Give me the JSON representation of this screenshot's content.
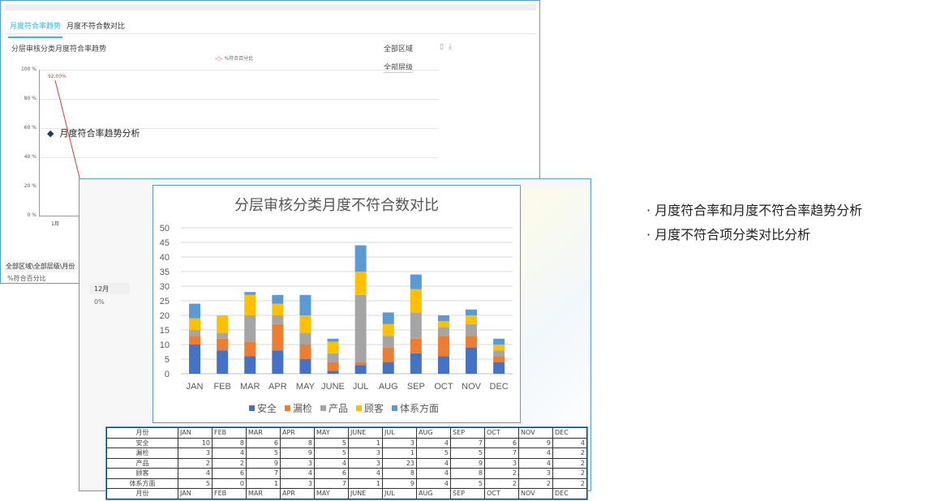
{
  "back_window": {
    "tabs": [
      {
        "label": "月度符合率趋势",
        "active": true
      },
      {
        "label": "月度不符合数对比",
        "active": false
      }
    ],
    "chart_title": "分层审核分类月度符合率趋势",
    "legend": "%符合百分比",
    "y_ticks": [
      "100 %",
      "80 %",
      "60 %",
      "40 %",
      "20 %",
      "0 %"
    ],
    "x_tick": "1月",
    "point_label": "92.00%",
    "filter_region": "全部区域",
    "filter_level": "全部层级",
    "annotation": "月度符合率趋势分析",
    "table_header": "全部区域\\全部层级\\月份",
    "table_row_label": "%符合百分比",
    "month_cell": "12月",
    "value_cell": "0%",
    "line_color": "#e03a2f"
  },
  "chart_data": {
    "type": "bar",
    "stacked": true,
    "title": "分层审核分类月度不符合数对比",
    "categories": [
      "JAN",
      "FEB",
      "MAR",
      "APR",
      "MAY",
      "JUNE",
      "JUL",
      "AUG",
      "SEP",
      "OCT",
      "NOV",
      "DEC"
    ],
    "ylim": [
      0,
      50
    ],
    "yticks": [
      0,
      5,
      10,
      15,
      20,
      25,
      30,
      35,
      40,
      45,
      50
    ],
    "grid": true,
    "legend_position": "bottom",
    "series": [
      {
        "name": "安全",
        "color": "#4472c4",
        "values": [
          10,
          8,
          6,
          8,
          5,
          1,
          3,
          4,
          7,
          6,
          9,
          4
        ]
      },
      {
        "name": "漏检",
        "color": "#ed7d31",
        "values": [
          3,
          4,
          5,
          9,
          5,
          3,
          1,
          5,
          5,
          7,
          4,
          2
        ]
      },
      {
        "name": "产品",
        "color": "#a5a5a5",
        "values": [
          2,
          2,
          9,
          3,
          4,
          3,
          23,
          4,
          9,
          3,
          4,
          2
        ]
      },
      {
        "name": "顾客",
        "color": "#ffc000",
        "values": [
          4,
          6,
          7,
          4,
          6,
          4,
          8,
          4,
          8,
          2,
          3,
          2
        ]
      },
      {
        "name": "体系方面",
        "color": "#5b9bd5",
        "values": [
          5,
          0,
          1,
          3,
          7,
          1,
          9,
          4,
          5,
          2,
          2,
          2
        ]
      }
    ]
  },
  "table": {
    "header_label": "月份",
    "categories_label": [
      "安全",
      "漏检",
      "产品",
      "顾客",
      "体系方面"
    ]
  },
  "bullets": [
    "月度符合率和月度不符合率趋势分析",
    "月度不符合项分类对比分析"
  ]
}
